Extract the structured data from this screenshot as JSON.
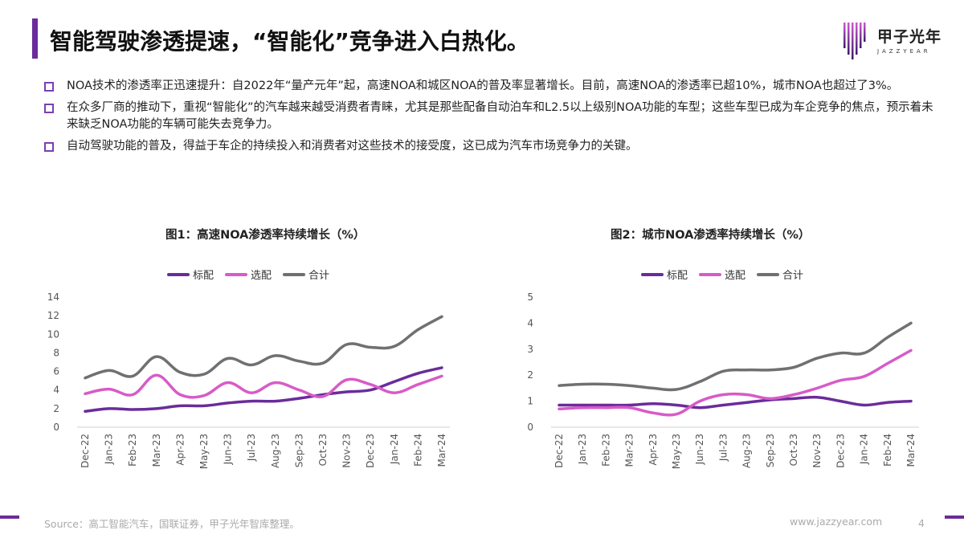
{
  "header": {
    "title": "智能驾驶渗透提速，“智能化”竞争进入白热化。",
    "logo_text": "甲子光年",
    "logo_subtext": "JAZZYEAR",
    "accent_color": "#6a2c9a"
  },
  "bullets": [
    "NOA技术的渗透率正迅速提升：自2022年“量产元年”起，高速NOA和城区NOA的普及率显著增长。目前，高速NOA的渗透率已超10%，城市NOA也超过了3%。",
    "在众多厂商的推动下，重视“智能化”的汽车越来越受消费者青睐，尤其是那些配备自动泊车和L2.5以上级别NOA功能的车型；这些车型已成为车企竞争的焦点，预示着未来缺乏NOA功能的车辆可能失去竞争力。",
    "自动驾驶功能的普及，得益于车企的持续投入和消费者对这些技术的接受度，这已成为汽车市场竞争力的关键。"
  ],
  "chart_data": [
    {
      "type": "line",
      "title": "图1：高速NOA渗透率持续增长（%）",
      "categories": [
        "Dec-22",
        "Jan-23",
        "Feb-23",
        "Mar-23",
        "Apr-23",
        "May-23",
        "Jun-23",
        "Jul-23",
        "Aug-23",
        "Sep-23",
        "Oct-23",
        "Nov-23",
        "Dec-23",
        "Jan-24",
        "Feb-24",
        "Mar-24"
      ],
      "series": [
        {
          "name": "标配",
          "color": "#6a2c9a",
          "values": [
            1.7,
            2.0,
            1.9,
            2.0,
            2.3,
            2.3,
            2.6,
            2.8,
            2.8,
            3.1,
            3.5,
            3.8,
            4.0,
            4.9,
            5.8,
            6.4
          ]
        },
        {
          "name": "选配",
          "color": "#d75bc8",
          "values": [
            3.6,
            4.1,
            3.5,
            5.6,
            3.5,
            3.4,
            4.8,
            3.7,
            4.8,
            4.0,
            3.3,
            5.1,
            4.6,
            3.7,
            4.6,
            5.5
          ]
        },
        {
          "name": "合计",
          "color": "#707070",
          "values": [
            5.3,
            6.1,
            5.5,
            7.6,
            5.9,
            5.7,
            7.4,
            6.7,
            7.7,
            7.1,
            6.9,
            8.9,
            8.6,
            8.7,
            10.5,
            11.9
          ]
        }
      ],
      "y_ticks": [
        0,
        2,
        4,
        6,
        8,
        10,
        12,
        14
      ],
      "ylim": [
        0,
        14
      ],
      "grid": false,
      "legend_position": "top"
    },
    {
      "type": "line",
      "title": "图2：城市NOA渗透率持续增长（%）",
      "categories": [
        "Dec-22",
        "Jan-23",
        "Feb-23",
        "Mar-23",
        "Apr-23",
        "May-23",
        "Jun-23",
        "Jul-23",
        "Aug-23",
        "Sep-23",
        "Oct-23",
        "Nov-23",
        "Dec-23",
        "Jan-24",
        "Feb-24",
        "Mar-24"
      ],
      "series": [
        {
          "name": "标配",
          "color": "#6a2c9a",
          "values": [
            0.85,
            0.85,
            0.85,
            0.85,
            0.9,
            0.85,
            0.75,
            0.85,
            0.95,
            1.05,
            1.1,
            1.15,
            1.0,
            0.85,
            0.95,
            1.0
          ]
        },
        {
          "name": "选配",
          "color": "#d75bc8",
          "values": [
            0.7,
            0.75,
            0.75,
            0.75,
            0.55,
            0.5,
            1.0,
            1.25,
            1.25,
            1.1,
            1.25,
            1.5,
            1.8,
            1.95,
            2.45,
            2.95
          ]
        },
        {
          "name": "合计",
          "color": "#707070",
          "values": [
            1.6,
            1.65,
            1.65,
            1.6,
            1.5,
            1.45,
            1.75,
            2.15,
            2.2,
            2.2,
            2.3,
            2.65,
            2.85,
            2.85,
            3.45,
            4.0
          ]
        }
      ],
      "y_ticks": [
        0,
        1,
        2,
        3,
        4,
        5
      ],
      "ylim": [
        0,
        5
      ],
      "grid": false,
      "legend_position": "top"
    }
  ],
  "footer": {
    "source": "Source：高工智能汽车，国联证券，甲子光年智库整理。",
    "website": "www.jazzyear.com",
    "page": "4"
  }
}
